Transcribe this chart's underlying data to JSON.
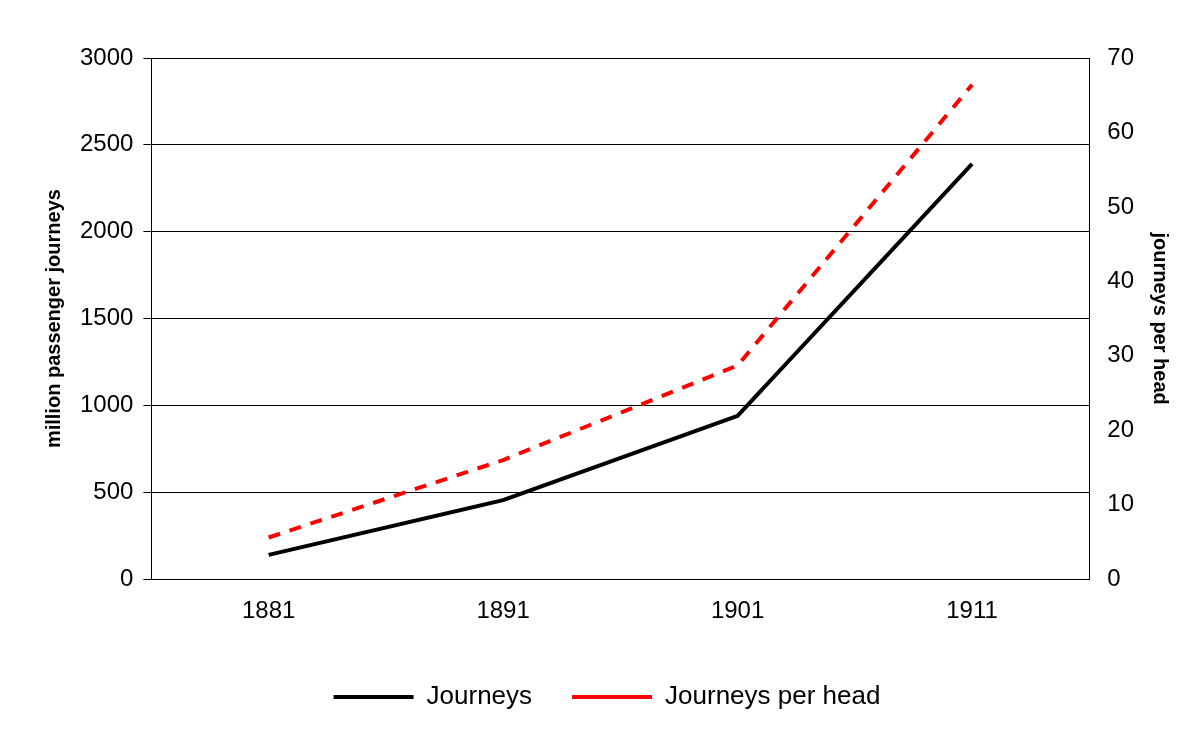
{
  "chart_data": {
    "type": "line",
    "categories": [
      "1881",
      "1891",
      "1901",
      "1911"
    ],
    "ylabel": "million passenger journeys",
    "y2label": "journeys per head",
    "series": [
      {
        "name": "Journeys",
        "color": "#000000",
        "values": [
          140,
          455,
          940,
          2390
        ],
        "line_style": "solid"
      },
      {
        "name": "Journeys per head",
        "color": "#ff0000",
        "values": [
          5.6,
          16,
          28.7,
          66.4
        ],
        "axis": "y2",
        "line_style": "dashed"
      }
    ],
    "ylim": [
      0,
      3000
    ],
    "yticks": [
      0,
      500,
      1000,
      1500,
      2000,
      2500,
      3000
    ],
    "y2lim": [
      0,
      70
    ],
    "y2ticks": [
      0,
      10,
      20,
      30,
      40,
      50,
      60,
      70
    ],
    "grid": "y",
    "legend": "bottom",
    "marker": "none"
  }
}
